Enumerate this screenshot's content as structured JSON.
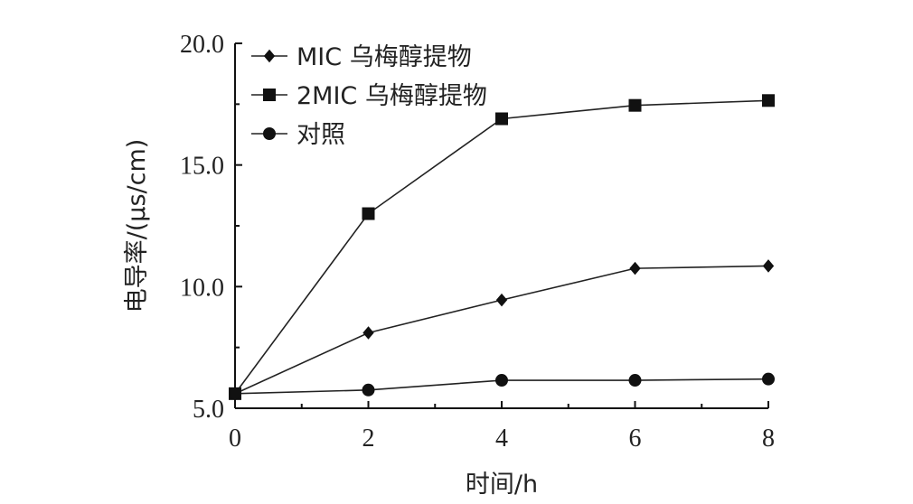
{
  "chart_data": {
    "type": "line",
    "xlabel": "时间/h",
    "ylabel": "电导率/(μs/cm)",
    "x": [
      0,
      2,
      4,
      6,
      8
    ],
    "xlim": [
      0,
      8
    ],
    "ylim": [
      5.0,
      20.0
    ],
    "xticks": [
      "0",
      "2",
      "4",
      "6",
      "8"
    ],
    "yticks": [
      "5.0",
      "10.0",
      "15.0",
      "20.0"
    ],
    "ytick_values": [
      5.0,
      10.0,
      15.0,
      20.0
    ],
    "grid": false,
    "legend_position": "top-left",
    "series": [
      {
        "name": "MIC 乌梅醇提物",
        "marker": "diamond",
        "values": [
          5.6,
          8.1,
          9.45,
          10.75,
          10.85
        ]
      },
      {
        "name": "2MIC 乌梅醇提物",
        "marker": "square",
        "values": [
          5.6,
          13.0,
          16.9,
          17.45,
          17.65
        ]
      },
      {
        "name": "对照",
        "marker": "circle",
        "values": [
          5.6,
          5.75,
          6.15,
          6.15,
          6.2
        ]
      }
    ]
  }
}
